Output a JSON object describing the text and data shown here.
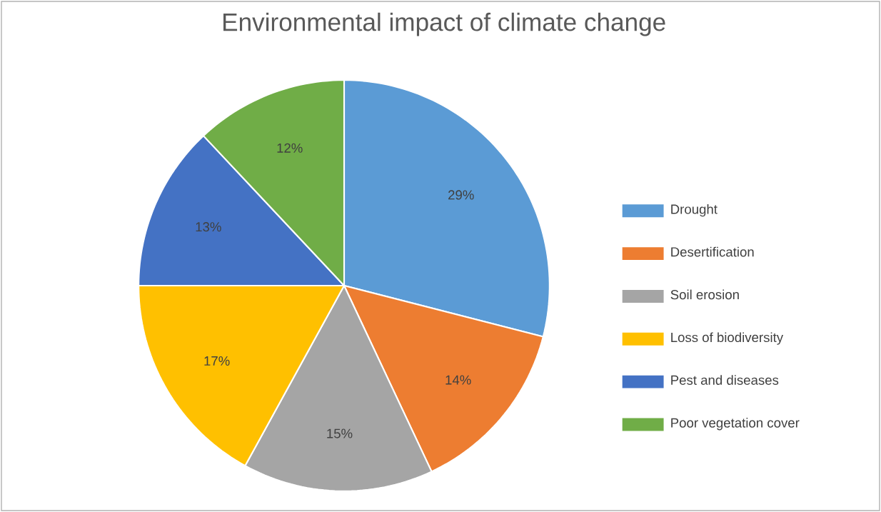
{
  "chart_data": {
    "type": "pie",
    "title": "Environmental impact of climate change",
    "categories": [
      "Drought",
      "Desertification",
      "Soil erosion",
      "Loss of biodiversity",
      "Pest and diseases",
      "Poor vegetation cover"
    ],
    "values": [
      29,
      14,
      15,
      17,
      13,
      12
    ],
    "value_labels": [
      "29%",
      "14%",
      "15%",
      "17%",
      "13%",
      "12%"
    ],
    "colors": [
      "#5b9bd5",
      "#ed7d31",
      "#a5a5a5",
      "#ffc000",
      "#4472c4",
      "#70ad47"
    ],
    "legend": "right"
  }
}
